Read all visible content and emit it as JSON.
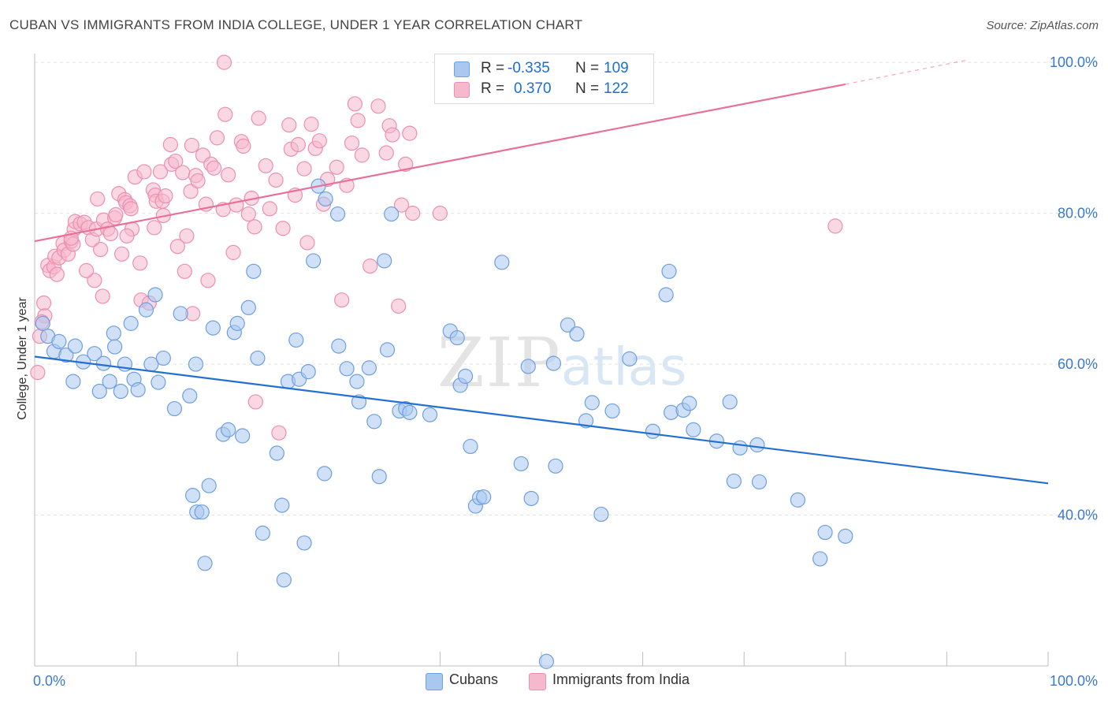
{
  "header": {
    "title": "CUBAN VS IMMIGRANTS FROM INDIA COLLEGE, UNDER 1 YEAR CORRELATION CHART",
    "source": "Source: ZipAtlas.com"
  },
  "legend": {
    "r_label": "R =",
    "n_label": "N =",
    "cubans": {
      "r": "-0.335",
      "n": "109"
    },
    "india": {
      "r": "0.370",
      "n": "122"
    }
  },
  "bottom_legend": {
    "cubans": "Cubans",
    "india": "Immigrants from India"
  },
  "watermark": {
    "zip": "ZIP",
    "atlas": "atlas"
  },
  "colors": {
    "cubans_fill": "#a9c8f0",
    "cubans_stroke": "#6f9fe0",
    "cubans_line": "#2470d0",
    "india_fill": "#f6b8cc",
    "india_stroke": "#ee8fae",
    "india_line": "#e8709a",
    "axis_text": "#3a78d0",
    "grid": "#e3e3e3"
  },
  "chart_data": {
    "type": "scatter",
    "title": "CUBAN VS IMMIGRANTS FROM INDIA COLLEGE, UNDER 1 YEAR CORRELATION CHART",
    "ylabel": "College, Under 1 year",
    "xlabel": "",
    "xlim": [
      0,
      100
    ],
    "ylim": [
      20,
      102
    ],
    "x_tick_labels": [
      "0.0%",
      "100.0%"
    ],
    "y_ticks": [
      40,
      60,
      80,
      100
    ],
    "y_tick_labels": [
      "40.0%",
      "60.0%",
      "80.0%",
      "100.0%"
    ],
    "grid": true,
    "series": [
      {
        "name": "Cubans",
        "points": [
          [
            0.8,
            65.4
          ],
          [
            1.3,
            63.7
          ],
          [
            1.9,
            61.7
          ],
          [
            2.4,
            63.0
          ],
          [
            3.1,
            61.2
          ],
          [
            3.8,
            57.7
          ],
          [
            4.0,
            62.4
          ],
          [
            4.8,
            60.3
          ],
          [
            5.9,
            61.4
          ],
          [
            6.4,
            56.4
          ],
          [
            6.8,
            60.1
          ],
          [
            7.4,
            57.7
          ],
          [
            7.8,
            64.1
          ],
          [
            7.9,
            62.3
          ],
          [
            8.5,
            56.4
          ],
          [
            8.9,
            60.0
          ],
          [
            9.5,
            65.4
          ],
          [
            9.8,
            58.0
          ],
          [
            10.2,
            56.6
          ],
          [
            11.0,
            67.2
          ],
          [
            11.5,
            60.0
          ],
          [
            11.9,
            69.2
          ],
          [
            12.2,
            57.6
          ],
          [
            12.7,
            60.8
          ],
          [
            13.8,
            54.1
          ],
          [
            14.4,
            66.7
          ],
          [
            15.3,
            55.8
          ],
          [
            15.6,
            42.6
          ],
          [
            15.9,
            60.0
          ],
          [
            16.0,
            40.4
          ],
          [
            16.5,
            40.4
          ],
          [
            16.8,
            33.6
          ],
          [
            17.2,
            43.9
          ],
          [
            17.6,
            64.8
          ],
          [
            18.6,
            50.7
          ],
          [
            19.1,
            51.3
          ],
          [
            19.7,
            64.2
          ],
          [
            20.0,
            65.4
          ],
          [
            20.5,
            50.5
          ],
          [
            21.1,
            67.5
          ],
          [
            21.6,
            72.3
          ],
          [
            22.0,
            60.8
          ],
          [
            22.5,
            37.6
          ],
          [
            23.9,
            48.2
          ],
          [
            24.4,
            41.3
          ],
          [
            24.6,
            31.4
          ],
          [
            25.0,
            57.7
          ],
          [
            25.8,
            63.2
          ],
          [
            26.1,
            58.0
          ],
          [
            26.6,
            36.3
          ],
          [
            27.0,
            59.0
          ],
          [
            27.5,
            73.7
          ],
          [
            28.0,
            83.6
          ],
          [
            28.6,
            45.5
          ],
          [
            28.7,
            81.9
          ],
          [
            29.9,
            79.9
          ],
          [
            30.0,
            62.4
          ],
          [
            30.8,
            59.4
          ],
          [
            31.8,
            57.7
          ],
          [
            32.0,
            55.0
          ],
          [
            33.0,
            59.5
          ],
          [
            33.5,
            52.4
          ],
          [
            34.0,
            45.1
          ],
          [
            34.5,
            73.7
          ],
          [
            34.8,
            61.9
          ],
          [
            35.2,
            79.9
          ],
          [
            36.0,
            53.8
          ],
          [
            36.6,
            54.1
          ],
          [
            37.0,
            53.6
          ],
          [
            39.0,
            53.3
          ],
          [
            41.0,
            64.4
          ],
          [
            41.7,
            63.5
          ],
          [
            42.0,
            57.2
          ],
          [
            42.5,
            58.4
          ],
          [
            43.0,
            49.1
          ],
          [
            43.5,
            41.2
          ],
          [
            43.9,
            42.3
          ],
          [
            44.3,
            42.4
          ],
          [
            46.1,
            73.5
          ],
          [
            48.0,
            46.8
          ],
          [
            49.0,
            42.2
          ],
          [
            50.5,
            20.6
          ],
          [
            51.4,
            46.5
          ],
          [
            52.6,
            65.2
          ],
          [
            53.5,
            64.0
          ],
          [
            54.4,
            52.5
          ],
          [
            55.0,
            54.9
          ],
          [
            55.9,
            40.1
          ],
          [
            57.0,
            53.8
          ],
          [
            58.7,
            60.7
          ],
          [
            61.0,
            51.1
          ],
          [
            62.3,
            69.2
          ],
          [
            62.6,
            72.3
          ],
          [
            62.8,
            53.6
          ],
          [
            64.0,
            53.9
          ],
          [
            64.6,
            54.8
          ],
          [
            65.0,
            51.3
          ],
          [
            67.3,
            49.8
          ],
          [
            68.6,
            55.0
          ],
          [
            69.0,
            44.5
          ],
          [
            69.6,
            48.9
          ],
          [
            71.3,
            49.3
          ],
          [
            71.5,
            44.4
          ],
          [
            75.3,
            42.0
          ],
          [
            77.5,
            34.2
          ],
          [
            78.0,
            37.7
          ],
          [
            80.0,
            37.2
          ],
          [
            51.2,
            60.1
          ],
          [
            48.7,
            59.7
          ]
        ],
        "trend": {
          "start": [
            0,
            61.0
          ],
          "end": [
            100,
            44.2
          ]
        }
      },
      {
        "name": "Immigrants from India",
        "points": [
          [
            0.3,
            58.9
          ],
          [
            0.5,
            63.7
          ],
          [
            0.9,
            68.1
          ],
          [
            1.0,
            66.4
          ],
          [
            1.3,
            73.1
          ],
          [
            1.5,
            72.4
          ],
          [
            1.9,
            72.9
          ],
          [
            2.0,
            74.3
          ],
          [
            2.4,
            74.1
          ],
          [
            2.8,
            76.0
          ],
          [
            2.9,
            75.1
          ],
          [
            3.3,
            74.6
          ],
          [
            3.6,
            76.3
          ],
          [
            3.8,
            75.9
          ],
          [
            3.9,
            77.9
          ],
          [
            4.0,
            78.9
          ],
          [
            4.5,
            78.6
          ],
          [
            4.9,
            78.8
          ],
          [
            5.3,
            78.1
          ],
          [
            5.7,
            76.5
          ],
          [
            5.9,
            71.1
          ],
          [
            6.1,
            77.9
          ],
          [
            6.2,
            81.9
          ],
          [
            6.5,
            75.2
          ],
          [
            6.8,
            79.1
          ],
          [
            7.2,
            77.9
          ],
          [
            7.5,
            77.3
          ],
          [
            7.9,
            79.4
          ],
          [
            8.0,
            79.8
          ],
          [
            8.3,
            82.6
          ],
          [
            8.6,
            74.6
          ],
          [
            8.9,
            81.8
          ],
          [
            9.0,
            81.4
          ],
          [
            9.4,
            81.0
          ],
          [
            9.5,
            80.6
          ],
          [
            9.6,
            77.9
          ],
          [
            9.9,
            84.8
          ],
          [
            10.4,
            73.4
          ],
          [
            10.5,
            68.5
          ],
          [
            10.8,
            85.5
          ],
          [
            11.3,
            68.1
          ],
          [
            11.7,
            83.1
          ],
          [
            11.8,
            78.1
          ],
          [
            11.9,
            82.4
          ],
          [
            12.0,
            81.6
          ],
          [
            12.4,
            85.5
          ],
          [
            12.6,
            81.6
          ],
          [
            12.9,
            82.3
          ],
          [
            13.4,
            89.1
          ],
          [
            13.5,
            86.5
          ],
          [
            13.9,
            86.9
          ],
          [
            14.1,
            75.6
          ],
          [
            14.6,
            85.4
          ],
          [
            14.8,
            72.3
          ],
          [
            15.0,
            77.0
          ],
          [
            15.4,
            82.9
          ],
          [
            15.5,
            89.0
          ],
          [
            15.9,
            85.0
          ],
          [
            16.1,
            84.3
          ],
          [
            16.6,
            87.7
          ],
          [
            16.9,
            81.2
          ],
          [
            17.1,
            71.1
          ],
          [
            17.4,
            86.5
          ],
          [
            17.7,
            86.0
          ],
          [
            18.0,
            90.0
          ],
          [
            18.6,
            80.5
          ],
          [
            18.8,
            93.1
          ],
          [
            19.1,
            85.1
          ],
          [
            19.6,
            74.8
          ],
          [
            19.9,
            81.1
          ],
          [
            20.4,
            89.5
          ],
          [
            20.6,
            88.9
          ],
          [
            21.1,
            79.9
          ],
          [
            21.4,
            82.0
          ],
          [
            21.7,
            78.2
          ],
          [
            21.8,
            55.0
          ],
          [
            22.1,
            92.6
          ],
          [
            22.8,
            86.3
          ],
          [
            23.2,
            80.6
          ],
          [
            23.8,
            84.4
          ],
          [
            24.1,
            50.9
          ],
          [
            24.5,
            78.0
          ],
          [
            25.1,
            91.7
          ],
          [
            25.3,
            88.5
          ],
          [
            25.7,
            82.4
          ],
          [
            26.0,
            89.1
          ],
          [
            26.6,
            85.9
          ],
          [
            26.9,
            76.1
          ],
          [
            27.3,
            91.8
          ],
          [
            27.7,
            88.6
          ],
          [
            28.1,
            89.6
          ],
          [
            28.5,
            81.2
          ],
          [
            28.9,
            84.5
          ],
          [
            29.8,
            86.1
          ],
          [
            30.3,
            68.5
          ],
          [
            30.8,
            83.7
          ],
          [
            31.6,
            94.5
          ],
          [
            31.9,
            92.3
          ],
          [
            32.3,
            87.7
          ],
          [
            33.1,
            73.0
          ],
          [
            33.9,
            94.2
          ],
          [
            34.7,
            88.0
          ],
          [
            35.0,
            91.6
          ],
          [
            35.3,
            90.4
          ],
          [
            35.9,
            67.7
          ],
          [
            36.2,
            81.1
          ],
          [
            36.6,
            86.5
          ],
          [
            37.0,
            90.6
          ],
          [
            37.3,
            80.0
          ],
          [
            15.6,
            66.7
          ],
          [
            18.7,
            100.0
          ],
          [
            31.3,
            89.3
          ],
          [
            9.1,
            77.0
          ],
          [
            12.7,
            79.7
          ],
          [
            5.1,
            72.4
          ],
          [
            6.7,
            69.0
          ],
          [
            3.6,
            76.7
          ],
          [
            2.2,
            71.9
          ],
          [
            0.7,
            65.6
          ],
          [
            79.0,
            78.3
          ],
          [
            40.0,
            80.0
          ]
        ],
        "trend": {
          "start": [
            0,
            76.3
          ],
          "end": [
            80,
            97.1
          ],
          "dashed_to": [
            92,
            100.3
          ]
        }
      }
    ]
  }
}
